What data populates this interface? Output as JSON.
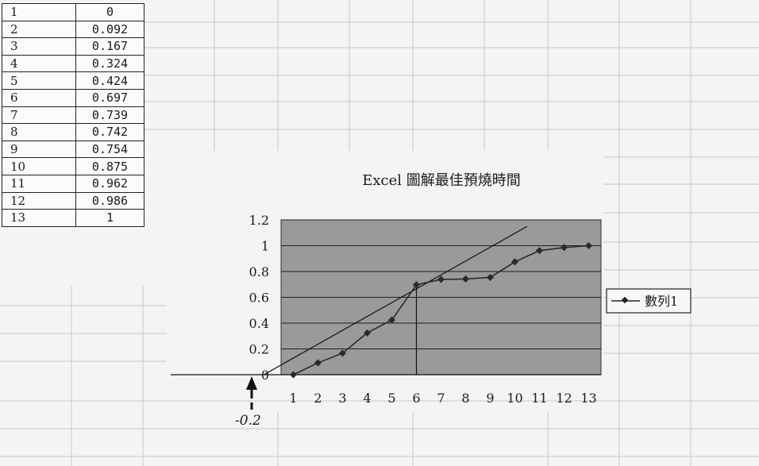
{
  "table": {
    "rows": [
      {
        "n": "1",
        "v": "0"
      },
      {
        "n": "2",
        "v": "0.092"
      },
      {
        "n": "3",
        "v": "0.167"
      },
      {
        "n": "4",
        "v": "0.324"
      },
      {
        "n": "5",
        "v": "0.424"
      },
      {
        "n": "6",
        "v": "0.697"
      },
      {
        "n": "7",
        "v": "0.739"
      },
      {
        "n": "8",
        "v": "0.742"
      },
      {
        "n": "9",
        "v": "0.754"
      },
      {
        "n": "10",
        "v": "0.875"
      },
      {
        "n": "11",
        "v": "0.962"
      },
      {
        "n": "12",
        "v": "0.986"
      },
      {
        "n": "13",
        "v": "1"
      }
    ]
  },
  "chart_data": {
    "type": "line",
    "title": "Excel 圖解最佳預燒時間",
    "x": [
      1,
      2,
      3,
      4,
      5,
      6,
      7,
      8,
      9,
      10,
      11,
      12,
      13
    ],
    "series": [
      {
        "name": "數列1",
        "values": [
          0,
          0.092,
          0.167,
          0.324,
          0.424,
          0.697,
          0.739,
          0.742,
          0.754,
          0.875,
          0.962,
          0.986,
          1
        ]
      }
    ],
    "x_ticks": [
      "1",
      "2",
      "3",
      "4",
      "5",
      "6",
      "7",
      "8",
      "9",
      "10",
      "11",
      "12",
      "13"
    ],
    "y_ticks": [
      "0",
      "0.2",
      "0.4",
      "0.6",
      "0.8",
      "1",
      "1.2"
    ],
    "ylim": [
      0,
      1.2
    ],
    "xlim": [
      0.5,
      13.5
    ],
    "grid": true,
    "legend": "right",
    "tangent_line": {
      "x": [
        -0.2,
        10.5
      ],
      "y": [
        0,
        1.15
      ]
    },
    "vertical_marker_x": 6,
    "annotation": "-0.2",
    "colors": {
      "plot_bg": "#9a9a9a",
      "series": "#2a2a2a",
      "grid": "#1e1e1e"
    }
  }
}
